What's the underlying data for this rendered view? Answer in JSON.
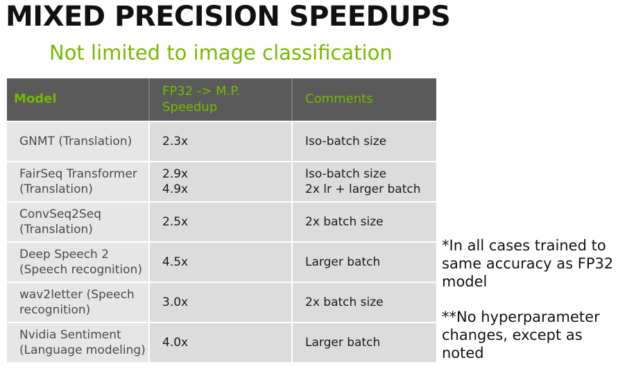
{
  "slide": {
    "title": "MIXED PRECISION SPEEDUPS",
    "subtitle": "Not limited to image classification"
  },
  "table": {
    "headers": {
      "model": "Model",
      "speedup_line1": "FP32 -> M.P.",
      "speedup_line2": "Speedup",
      "comments": "Comments"
    },
    "rows": [
      {
        "model": [
          "GNMT (Translation)"
        ],
        "speedup": [
          "2.3x"
        ],
        "comments": [
          "Iso-batch size"
        ]
      },
      {
        "model": [
          "FairSeq Transformer",
          "(Translation)"
        ],
        "speedup": [
          "2.9x",
          "4.9x"
        ],
        "comments": [
          "Iso-batch size",
          "2x lr + larger batch"
        ]
      },
      {
        "model": [
          "ConvSeq2Seq",
          "(Translation)"
        ],
        "speedup": [
          "2.5x"
        ],
        "comments": [
          "2x batch size"
        ]
      },
      {
        "model": [
          "Deep Speech 2",
          "(Speech recognition)"
        ],
        "speedup": [
          "4.5x"
        ],
        "comments": [
          "Larger batch"
        ]
      },
      {
        "model": [
          "wav2letter (Speech",
          "recognition)"
        ],
        "speedup": [
          "3.0x"
        ],
        "comments": [
          "2x batch size"
        ]
      },
      {
        "model": [
          "Nvidia Sentiment",
          "(Language modeling)"
        ],
        "speedup": [
          "4.0x"
        ],
        "comments": [
          "Larger batch"
        ]
      }
    ]
  },
  "notes": {
    "note1": "*In all cases trained to same accuracy as FP32 model",
    "note2": "**No hyperparameter changes, except as noted"
  },
  "colors": {
    "accent_green": "#76b900",
    "header_bg": "#5a5a5a",
    "cell_bg": "#dcdcdc"
  }
}
